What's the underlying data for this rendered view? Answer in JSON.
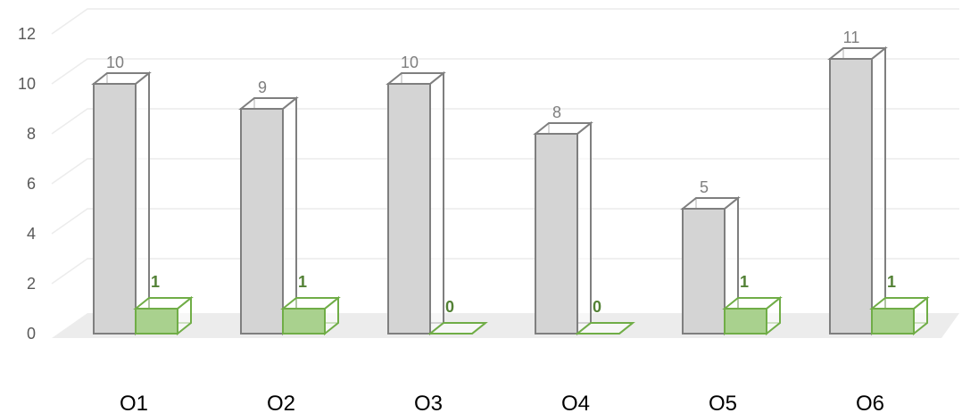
{
  "chart_data": {
    "type": "bar",
    "categories": [
      "O1",
      "O2",
      "O3",
      "O4",
      "O5",
      "O6"
    ],
    "series": [
      {
        "values": [
          10,
          9,
          10,
          8,
          5,
          11
        ],
        "color": "#d4d4d4"
      },
      {
        "values": [
          1,
          1,
          0,
          0,
          1,
          1
        ],
        "color": "#a9d18e"
      }
    ],
    "yticks": [
      0,
      2,
      4,
      6,
      8,
      10,
      12
    ],
    "ylim": [
      0,
      12
    ],
    "grid": true,
    "legend": "none",
    "style": "3d-clustered-column"
  }
}
